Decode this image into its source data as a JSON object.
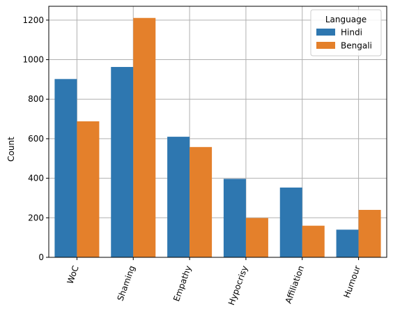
{
  "chart_data": {
    "type": "bar",
    "title": "",
    "xlabel": "",
    "ylabel": "Count",
    "categories": [
      "WoC",
      "Shaming",
      "Empathy",
      "Hypocrisy",
      "Affiliation",
      "Humour"
    ],
    "series": [
      {
        "name": "Hindi",
        "color": "#2e77b0",
        "values": [
          902,
          963,
          610,
          397,
          353,
          140
        ]
      },
      {
        "name": "Bengali",
        "color": "#e4802b",
        "values": [
          688,
          1211,
          558,
          199,
          160,
          240
        ]
      }
    ],
    "ylim": [
      0,
      1270
    ],
    "yticks": [
      0,
      200,
      400,
      600,
      800,
      1000,
      1200
    ],
    "grid": true,
    "legend": {
      "title": "Language",
      "position": "top-right"
    },
    "xtick_rotation": "70deg"
  }
}
